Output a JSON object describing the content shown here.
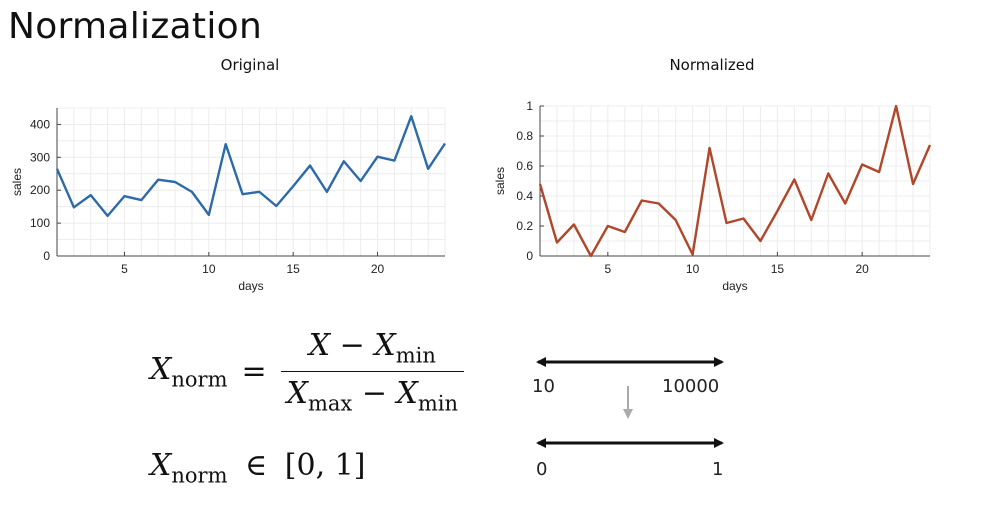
{
  "page": {
    "title": "Normalization"
  },
  "chart_data": [
    {
      "type": "line",
      "title": "Original",
      "xlabel": "days",
      "ylabel": "sales",
      "x": [
        1,
        2,
        3,
        4,
        5,
        6,
        7,
        8,
        9,
        10,
        11,
        12,
        13,
        14,
        15,
        16,
        17,
        18,
        19,
        20,
        21,
        22,
        23,
        24
      ],
      "series": [
        {
          "values": [
            265,
            148,
            185,
            122,
            182,
            170,
            232,
            225,
            195,
            125,
            340,
            188,
            195,
            152,
            212,
            275,
            195,
            288,
            228,
            302,
            290,
            425,
            265,
            342
          ]
        }
      ],
      "xlim": [
        1,
        24
      ],
      "ylim": [
        0,
        450
      ],
      "xticks": [
        5,
        10,
        15,
        20
      ],
      "yticks": [
        0,
        100,
        200,
        300,
        400
      ],
      "grid": true,
      "color": "#2e6aa8"
    },
    {
      "type": "line",
      "title": "Normalized",
      "xlabel": "days",
      "ylabel": "sales",
      "x": [
        1,
        2,
        3,
        4,
        5,
        6,
        7,
        8,
        9,
        10,
        11,
        12,
        13,
        14,
        15,
        16,
        17,
        18,
        19,
        20,
        21,
        22,
        23,
        24
      ],
      "series": [
        {
          "values": [
            0.48,
            0.09,
            0.21,
            0.0,
            0.2,
            0.16,
            0.37,
            0.35,
            0.24,
            0.01,
            0.72,
            0.22,
            0.25,
            0.1,
            0.3,
            0.51,
            0.24,
            0.55,
            0.35,
            0.61,
            0.56,
            1.0,
            0.48,
            0.74
          ]
        }
      ],
      "xlim": [
        1,
        24
      ],
      "ylim": [
        0,
        1
      ],
      "xticks": [
        5,
        10,
        15,
        20
      ],
      "yticks": [
        0,
        0.2,
        0.4,
        0.6,
        0.8,
        1
      ],
      "ytick_labels": [
        "0",
        "0.2",
        "0.4",
        "0.6",
        "0.8",
        "1"
      ],
      "grid": true,
      "color": "#b0462a"
    }
  ],
  "formulas": {
    "norm_def": {
      "lhs_var": "X",
      "lhs_sub": "norm",
      "eq": "=",
      "num_var": "X",
      "minus": "−",
      "num_var2": "X",
      "num_sub2": "min",
      "den_var": "X",
      "den_sub": "max",
      "den_minus": "−",
      "den_var2": "X",
      "den_sub2": "min"
    },
    "range": {
      "var": "X",
      "sub": "norm",
      "in": "∈",
      "interval": "[0, 1]"
    }
  },
  "scales": {
    "top": {
      "left": "10",
      "right": "10000"
    },
    "bottom": {
      "left": "0",
      "right": "1"
    }
  }
}
